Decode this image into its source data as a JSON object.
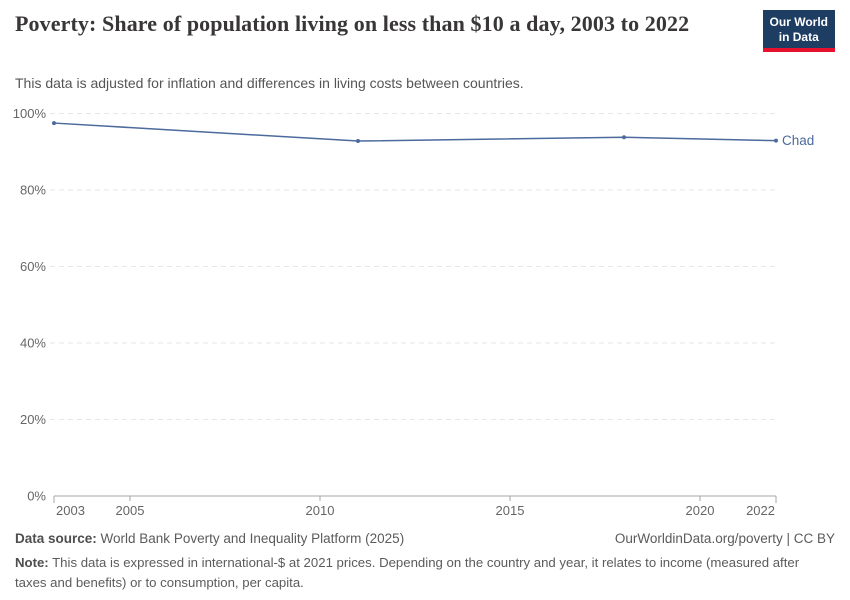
{
  "header": {
    "title": "Poverty: Share of population living on less than $10 a day, 2003 to 2022",
    "subtitle": "This data is adjusted for inflation and differences in living costs between countries.",
    "logo": {
      "line1": "Our World",
      "line2": "in Data",
      "bg_color": "#1d3d63",
      "accent_color": "#e8112d"
    }
  },
  "chart_data": {
    "type": "line",
    "title": "Poverty: Share of population living on less than $10 a day, 2003 to 2022",
    "xlabel": "",
    "ylabel": "",
    "xlim": [
      2003,
      2022
    ],
    "ylim": [
      0,
      100
    ],
    "grid": "horizontal-dashed",
    "legend_position": "end-of-line-label",
    "x_ticks": [
      {
        "value": 2003,
        "label": "2003"
      },
      {
        "value": 2005,
        "label": "2005"
      },
      {
        "value": 2010,
        "label": "2010"
      },
      {
        "value": 2015,
        "label": "2015"
      },
      {
        "value": 2020,
        "label": "2020"
      },
      {
        "value": 2022,
        "label": "2022"
      }
    ],
    "y_ticks": [
      {
        "value": 0,
        "label": "0%"
      },
      {
        "value": 20,
        "label": "20%"
      },
      {
        "value": 40,
        "label": "40%"
      },
      {
        "value": 60,
        "label": "60%"
      },
      {
        "value": 80,
        "label": "80%"
      },
      {
        "value": 100,
        "label": "100%"
      }
    ],
    "series": [
      {
        "name": "Chad",
        "color": "#4c6a9c",
        "points": [
          {
            "year": 2003,
            "value": 97.5
          },
          {
            "year": 2011,
            "value": 92.8
          },
          {
            "year": 2018,
            "value": 93.8
          },
          {
            "year": 2022,
            "value": 92.9
          }
        ]
      }
    ],
    "colors": {
      "gridline": "#e6e6e6",
      "axis": "#a5a5a5",
      "tick_label": "#666666"
    }
  },
  "footer": {
    "datasource_label": "Data source:",
    "datasource_value": " World Bank Poverty and Inequality Platform (2025)",
    "attribution": "OurWorldinData.org/poverty | CC BY",
    "note_label": "Note:",
    "note_value": " This data is expressed in international-$ at 2021 prices. Depending on the country and year, it relates to income (measured after taxes and benefits) or to consumption, per capita."
  }
}
